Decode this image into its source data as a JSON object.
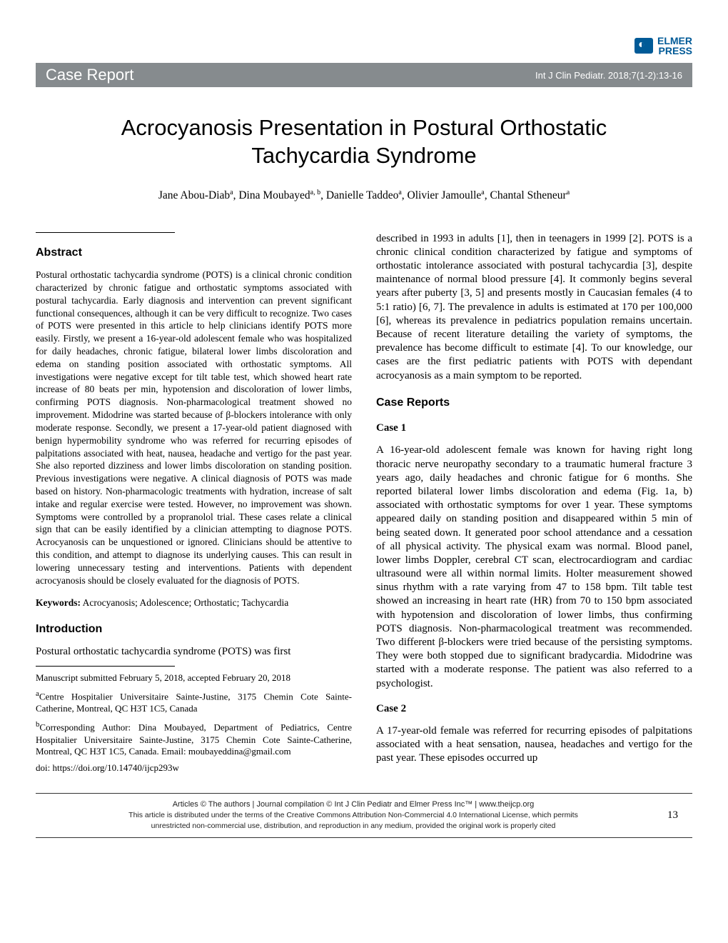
{
  "logo": {
    "name": "ELMER",
    "sub": "PRESS"
  },
  "header": {
    "category": "Case Report",
    "citation": "Int J Clin Pediatr. 2018;7(1-2):13-16"
  },
  "title": "Acrocyanosis Presentation in Postural Orthostatic Tachycardia Syndrome",
  "authors_html": "Jane Abou-Diab<sup>a</sup>, Dina Moubayed<sup>a, b</sup>, Danielle Taddeo<sup>a</sup>, Olivier Jamoulle<sup>a</sup>, Chantal Stheneur<sup>a</sup>",
  "sections": {
    "abstract": {
      "heading": "Abstract",
      "body": "Postural orthostatic tachycardia syndrome (POTS) is a clinical chronic condition characterized by chronic fatigue and orthostatic symptoms associated with postural tachycardia. Early diagnosis and intervention can prevent significant functional consequences, although it can be very difficult to recognize. Two cases of POTS were presented in this article to help clinicians identify POTS more easily. Firstly, we present a 16-year-old adolescent female who was hospitalized for daily headaches, chronic fatigue, bilateral lower limbs discoloration and edema on standing position associated with orthostatic symptoms. All investigations were negative except for tilt table test, which showed heart rate increase of 80 beats per min, hypotension and discoloration of lower limbs, confirming POTS diagnosis. Non-pharmacological treatment showed no improvement. Midodrine was started because of β-blockers intolerance with only moderate response. Secondly, we present a 17-year-old patient diagnosed with benign hypermobility syndrome who was referred for recurring episodes of palpitations associated with heat, nausea, headache and vertigo for the past year. She also reported dizziness and lower limbs discoloration on standing position. Previous investigations were negative. A clinical diagnosis of POTS was made based on history. Non-pharmacologic treatments with hydration, increase of salt intake and regular exercise were tested. However, no improvement was shown. Symptoms were controlled by a propranolol trial. These cases relate a clinical sign that can be easily identified by a clinician attempting to diagnose POTS. Acrocyanosis can be unquestioned or ignored. Clinicians should be attentive to this condition, and attempt to diagnose its underlying causes. This can result in lowering unnecessary testing and interventions. Patients with dependent acrocyanosis should be closely evaluated for the diagnosis of POTS."
    },
    "keywords": {
      "label": "Keywords:",
      "text": " Acrocyanosis; Adolescence; Orthostatic; Tachycardia"
    },
    "introduction": {
      "heading": "Introduction",
      "p1": "Postural orthostatic tachycardia syndrome (POTS) was first",
      "p2": "described in 1993 in adults [1], then in teenagers in 1999 [2]. POTS is a chronic clinical condition characterized by fatigue and symptoms of orthostatic intolerance associated with postural tachycardia [3], despite maintenance of normal blood pressure [4]. It commonly begins several years after puberty [3, 5] and presents mostly in Caucasian females (4 to 5:1 ratio) [6, 7]. The prevalence in adults is estimated at 170 per 100,000 [6], whereas its prevalence in pediatrics population remains uncertain. Because of recent literature detailing the variety of symptoms, the prevalence has become difficult to estimate [4]. To our knowledge, our cases are the first pediatric patients with POTS with dependant acrocyanosis as a main symptom to be reported."
    },
    "case_reports": {
      "heading": "Case Reports",
      "case1": {
        "heading": "Case 1",
        "body": "A 16-year-old adolescent female was known for having right long thoracic nerve neuropathy secondary to a traumatic humeral fracture 3 years ago, daily headaches and chronic fatigue for 6 months. She reported bilateral lower limbs discoloration and edema (Fig. 1a, b) associated with orthostatic symptoms for over 1 year. These symptoms appeared daily on standing position and disappeared within 5 min of being seated down. It generated poor school attendance and a cessation of all physical activity. The physical exam was normal. Blood panel, lower limbs Doppler, cerebral CT scan, electrocardiogram and cardiac ultrasound were all within normal limits. Holter measurement showed sinus rhythm with a rate varying from 47 to 158 bpm. Tilt table test showed an increasing in heart rate (HR) from 70 to 150 bpm associated with hypotension and discoloration of lower limbs, thus confirming POTS diagnosis. Non-pharmacological treatment was recommended. Two different β-blockers were tried because of the persisting symptoms. They were both stopped due to significant bradycardia. Midodrine was started with a moderate response. The patient was also referred to a psychologist."
      },
      "case2": {
        "heading": "Case 2",
        "body": "A 17-year-old female was referred for recurring episodes of palpitations associated with a heat sensation, nausea, headaches and vertigo for the past year. These episodes occurred up"
      }
    }
  },
  "manuscript_meta": {
    "dates": "Manuscript submitted February 5, 2018, accepted February 20, 2018",
    "affil_a": "<sup>a</sup>Centre Hospitalier Universitaire Sainte-Justine, 3175 Chemin Cote Sainte-Catherine, Montreal, QC H3T 1C5, Canada",
    "affil_b": "<sup>b</sup>Corresponding Author: Dina Moubayed, Department of Pediatrics, Centre Hospitalier Universitaire Sainte-Justine, 3175 Chemin Cote Sainte-Catherine, Montreal, QC H3T 1C5, Canada. Email: moubayeddina@gmail.com",
    "doi": "doi: https://doi.org/10.14740/ijcp293w"
  },
  "footer": {
    "line1": "Articles © The authors   |   Journal compilation © Int J Clin Pediatr and Elmer Press Inc™   |   www.theijcp.org",
    "line2": "This article is distributed under the terms of the Creative Commons Attribution Non-Commercial 4.0 International License, which permits",
    "line3": "unrestricted non-commercial use, distribution, and reproduction in any medium, provided the original work is properly cited",
    "page_number": "13"
  }
}
